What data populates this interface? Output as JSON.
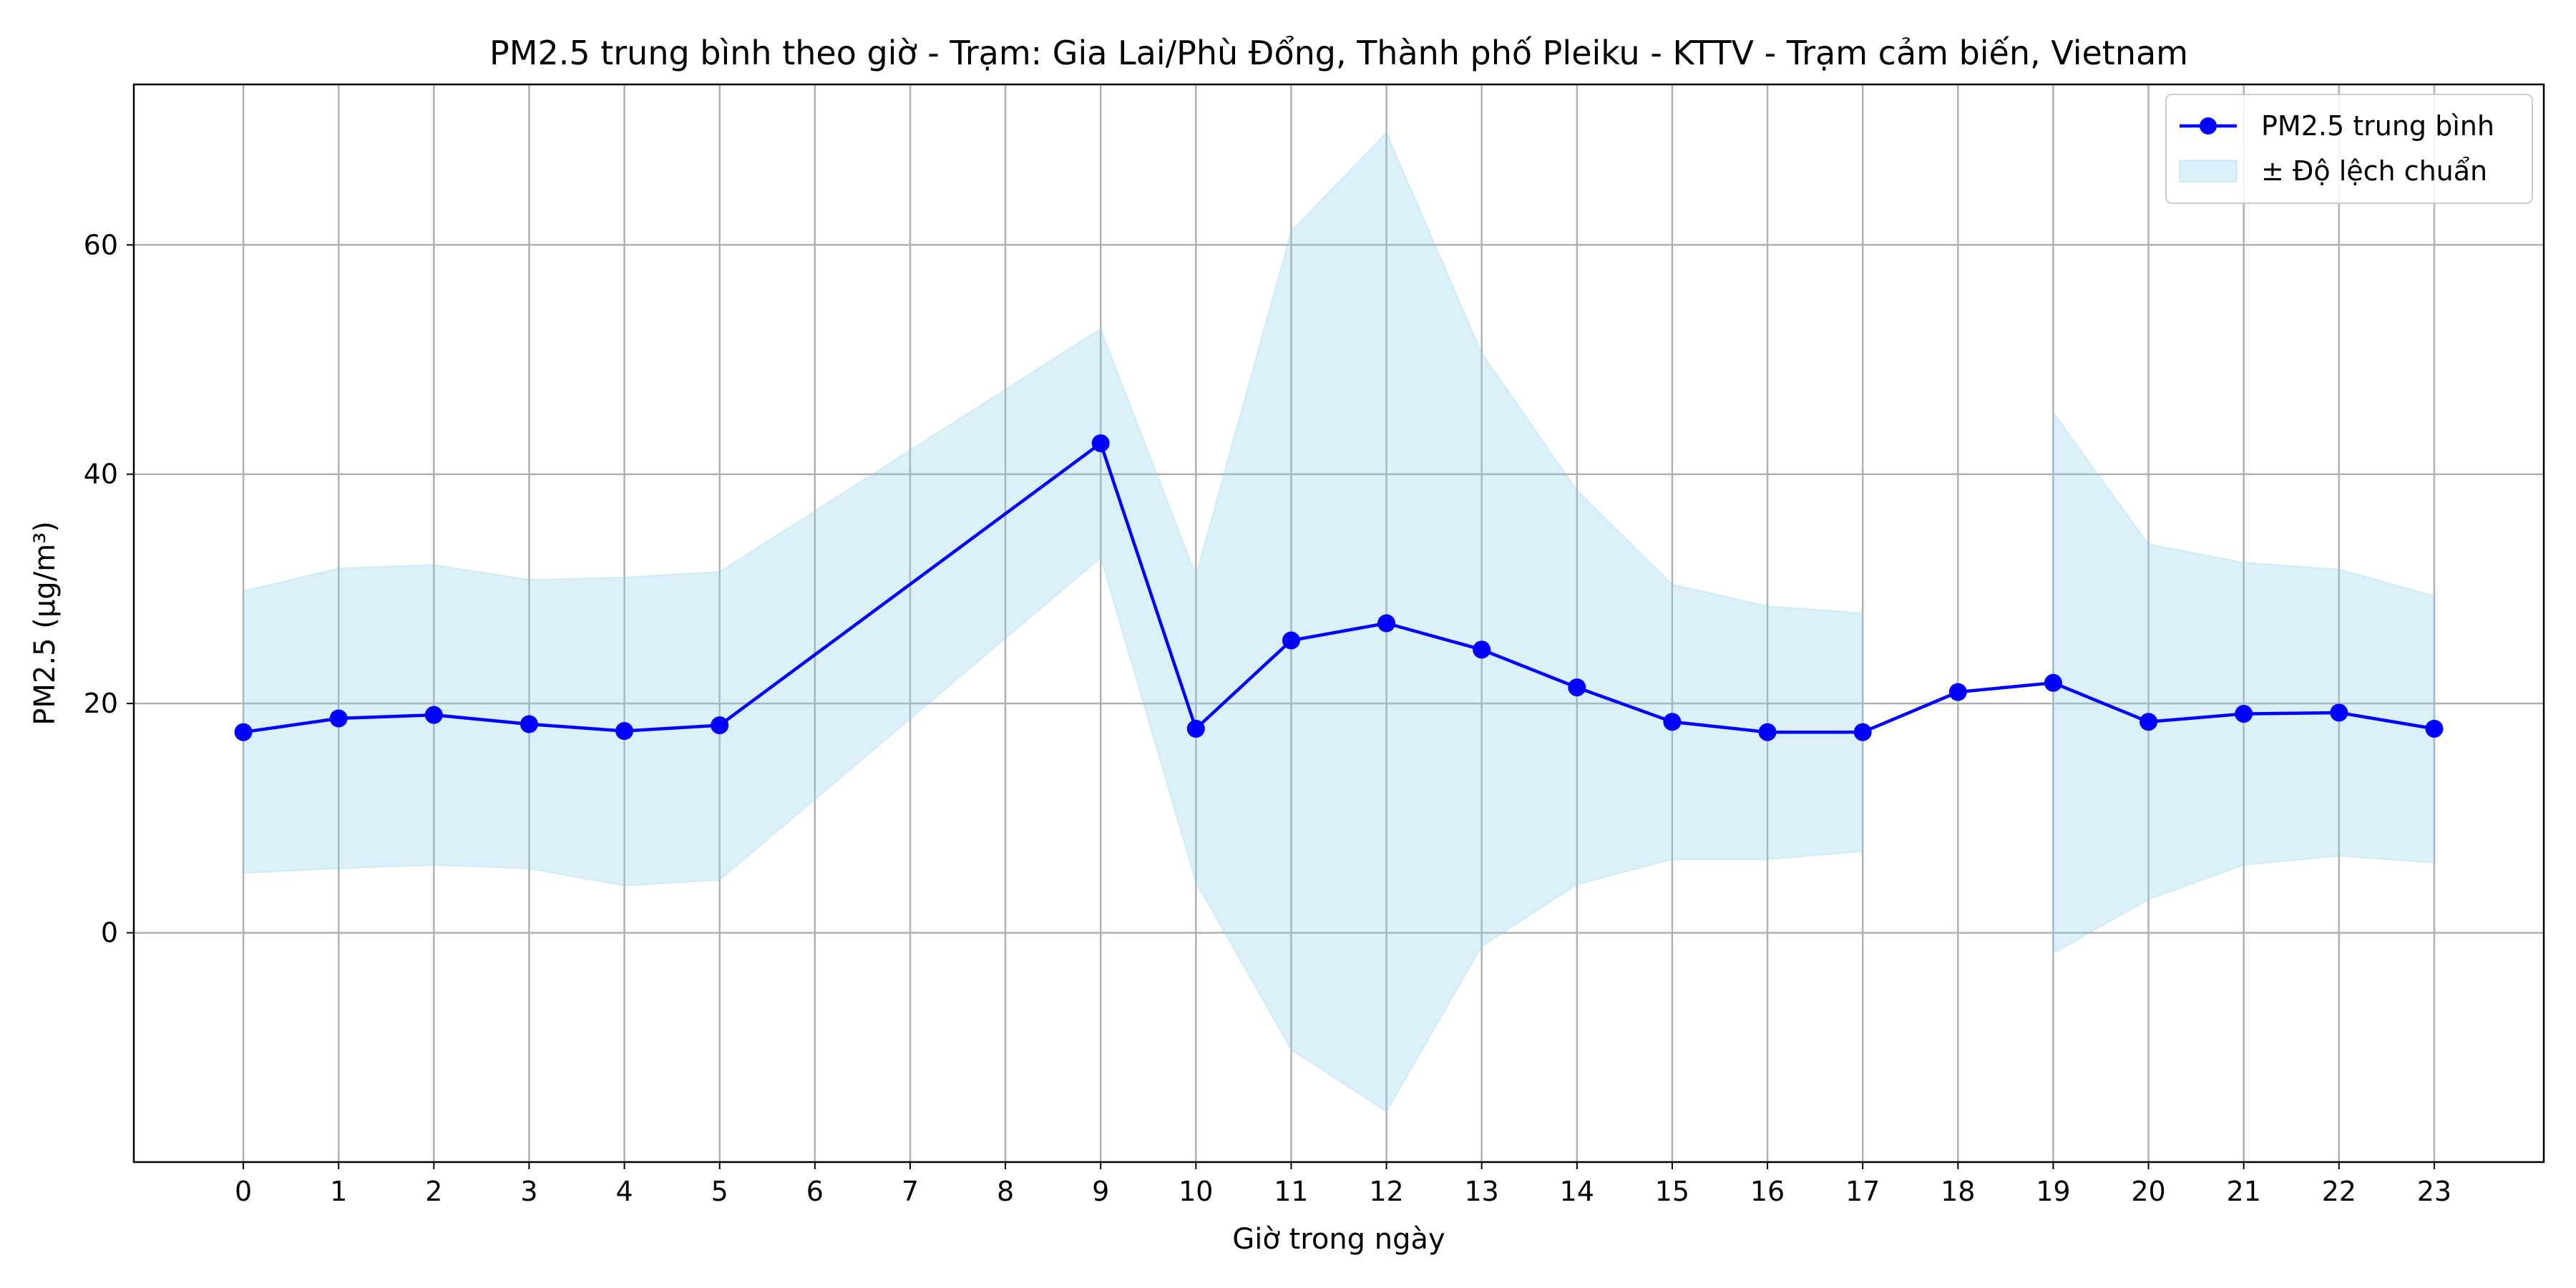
{
  "chart_data": {
    "type": "line",
    "title": "PM2.5 trung bình theo giờ - Trạm: Gia Lai/Phù Đổng, Thành phố Pleiku - KTTV - Trạm cảm biến, Vietnam",
    "xlabel": "Giờ trong ngày",
    "ylabel": "PM2.5 (µg/m³)",
    "x": [
      0,
      1,
      2,
      3,
      4,
      5,
      9,
      10,
      11,
      12,
      13,
      14,
      15,
      16,
      17,
      18,
      19,
      20,
      21,
      22,
      23
    ],
    "xticks": [
      "0",
      "1",
      "2",
      "3",
      "4",
      "5",
      "6",
      "7",
      "8",
      "9",
      "10",
      "11",
      "12",
      "13",
      "14",
      "15",
      "16",
      "17",
      "18",
      "19",
      "20",
      "21",
      "22",
      "23"
    ],
    "yticks": [
      "0",
      "20",
      "40",
      "60"
    ],
    "xlim": [
      -1.15,
      24.15
    ],
    "ylim": [
      -20,
      74
    ],
    "grid": true,
    "legend_position": "top-right",
    "series": [
      {
        "name": "PM2.5 trung bình",
        "color": "#0000ff",
        "marker": "circle",
        "values": [
          17.5,
          18.7,
          19.0,
          18.2,
          17.6,
          18.1,
          42.7,
          17.8,
          25.5,
          27.0,
          24.7,
          21.4,
          18.4,
          17.5,
          17.5,
          21.0,
          21.8,
          18.4,
          19.1,
          19.2,
          17.8
        ]
      }
    ],
    "band": {
      "name": "± Độ lệch chuẩn",
      "color": "#87ceeb",
      "segments": [
        {
          "x": [
            0,
            1,
            2,
            3,
            4,
            5,
            9,
            10,
            11,
            12,
            13,
            14,
            15,
            16,
            17
          ],
          "upper": [
            29.8,
            31.8,
            32.1,
            30.8,
            31.0,
            31.5,
            52.7,
            31.2,
            61.2,
            69.8,
            50.6,
            38.6,
            30.4,
            28.5,
            27.9
          ],
          "lower": [
            5.2,
            5.6,
            5.9,
            5.6,
            4.1,
            4.6,
            32.7,
            4.4,
            -10.2,
            -15.6,
            -1.2,
            4.2,
            6.4,
            6.4,
            7.1
          ]
        },
        {
          "x": [
            19,
            20,
            21,
            22,
            23
          ],
          "upper": [
            45.4,
            33.9,
            32.3,
            31.7,
            29.4
          ],
          "lower": [
            -1.8,
            2.9,
            5.9,
            6.7,
            6.1
          ]
        }
      ]
    }
  }
}
